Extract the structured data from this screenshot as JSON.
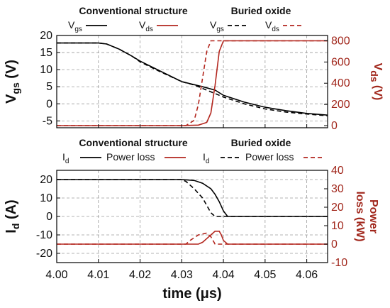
{
  "colors": {
    "black": "#000000",
    "red": "#b3261e",
    "grid": "#9a9a9a"
  },
  "chart_data": [
    {
      "type": "line",
      "legend_groups": [
        {
          "name": "Conventional structure",
          "style": "solid",
          "entries": [
            {
              "label": "V",
              "sub": "gs",
              "color": "#000000"
            },
            {
              "label": "V",
              "sub": "ds",
              "color": "#b3261e"
            }
          ]
        },
        {
          "name": "Buried oxide",
          "style": "dashed",
          "entries": [
            {
              "label": "V",
              "sub": "gs",
              "color": "#000000"
            },
            {
              "label": "V",
              "sub": "ds",
              "color": "#b3261e"
            }
          ]
        }
      ],
      "xlim": [
        4.0,
        4.065
      ],
      "ylim_left": [
        -7,
        20
      ],
      "ylim_right": [
        -20,
        850
      ],
      "yticks_left": [
        "20",
        "15",
        "10",
        "5",
        "0",
        "-5"
      ],
      "yticks_right": [
        "800",
        "600",
        "400",
        "200",
        "0"
      ],
      "ylabel_left": {
        "main": "V",
        "sub": "gs",
        "unit": " (V)"
      },
      "ylabel_right": {
        "main": "V",
        "sub": "ds",
        "unit": " (V)"
      },
      "grid": true,
      "series": [
        {
          "name": "Conventional Vgs",
          "axis": "left",
          "color": "#000000",
          "dash": false,
          "x": [
            4.0,
            4.005,
            4.01,
            4.012,
            4.015,
            4.018,
            4.02,
            4.025,
            4.03,
            4.035,
            4.038,
            4.04,
            4.045,
            4.05,
            4.055,
            4.06,
            4.065
          ],
          "y": [
            17.8,
            17.8,
            17.8,
            17.5,
            16.0,
            14.0,
            12.5,
            9.5,
            6.5,
            5.0,
            4.0,
            2.5,
            0.5,
            -1.0,
            -2.0,
            -2.8,
            -3.3
          ]
        },
        {
          "name": "Conventional Vds",
          "axis": "right",
          "color": "#b3261e",
          "dash": false,
          "x": [
            4.0,
            4.03,
            4.034,
            4.036,
            4.037,
            4.038,
            4.039,
            4.04,
            4.045,
            4.065
          ],
          "y": [
            0,
            0,
            5,
            30,
            120,
            380,
            700,
            800,
            800,
            800
          ]
        },
        {
          "name": "Buried oxide Vgs",
          "axis": "left",
          "color": "#000000",
          "dash": true,
          "x": [
            4.0,
            4.005,
            4.01,
            4.012,
            4.015,
            4.018,
            4.02,
            4.025,
            4.03,
            4.033,
            4.035,
            4.04,
            4.045,
            4.05,
            4.055,
            4.06,
            4.065
          ],
          "y": [
            17.8,
            17.8,
            17.8,
            17.5,
            16.0,
            14.0,
            12.3,
            9.3,
            6.5,
            5.5,
            4.5,
            2.0,
            0.0,
            -1.5,
            -2.4,
            -3.0,
            -3.5
          ]
        },
        {
          "name": "Buried oxide Vds",
          "axis": "right",
          "color": "#b3261e",
          "dash": true,
          "x": [
            4.0,
            4.031,
            4.033,
            4.034,
            4.035,
            4.036,
            4.037,
            4.065
          ],
          "y": [
            0,
            0,
            50,
            200,
            450,
            700,
            800,
            800
          ]
        }
      ]
    },
    {
      "type": "line",
      "legend_groups": [
        {
          "name": "Conventional structure",
          "style": "solid",
          "entries": [
            {
              "label": "I",
              "sub": "d",
              "color": "#000000"
            },
            {
              "label": "Power loss",
              "sub": "",
              "color": "#b3261e"
            }
          ]
        },
        {
          "name": "Buried oxide",
          "style": "dashed",
          "entries": [
            {
              "label": "I",
              "sub": "d",
              "color": "#000000"
            },
            {
              "label": "Power loss",
              "sub": "",
              "color": "#b3261e"
            }
          ]
        }
      ],
      "xlim": [
        4.0,
        4.065
      ],
      "ylim_left": [
        -25,
        25
      ],
      "ylim_right": [
        -10,
        40
      ],
      "xticks": [
        "4.00",
        "4.01",
        "4.02",
        "4.03",
        "4.04",
        "4.05",
        "4.06"
      ],
      "yticks_left": [
        "20",
        "10",
        "0",
        "-10",
        "-20"
      ],
      "yticks_right": [
        "40",
        "30",
        "20",
        "10",
        "0",
        "-10"
      ],
      "xlabel": "time (μs)",
      "ylabel_left": {
        "main": "I",
        "sub": "d",
        "unit": " (A)"
      },
      "ylabel_right": {
        "line1": "Power",
        "line2": "loss (kW)"
      },
      "grid": true,
      "series": [
        {
          "name": "Conventional Id",
          "axis": "left",
          "color": "#000000",
          "dash": false,
          "x": [
            4.0,
            4.03,
            4.033,
            4.035,
            4.037,
            4.038,
            4.039,
            4.04,
            4.041,
            4.065
          ],
          "y": [
            20.0,
            20.0,
            19.5,
            18.0,
            15.0,
            12.0,
            8.0,
            3.0,
            0.0,
            0.0
          ]
        },
        {
          "name": "Conventional power loss",
          "axis": "right",
          "color": "#b3261e",
          "dash": false,
          "x": [
            4.0,
            4.034,
            4.035,
            4.036,
            4.037,
            4.038,
            4.039,
            4.0395,
            4.04,
            4.041,
            4.065
          ],
          "y": [
            0,
            0,
            1,
            3,
            5,
            7,
            7,
            5,
            2,
            0,
            0
          ]
        },
        {
          "name": "Buried oxide Id",
          "axis": "left",
          "color": "#000000",
          "dash": true,
          "x": [
            4.0,
            4.03,
            4.031,
            4.033,
            4.035,
            4.036,
            4.037,
            4.038,
            4.065
          ],
          "y": [
            20.0,
            20.0,
            19.0,
            15.0,
            10.0,
            6.0,
            2.0,
            0.0,
            0.0
          ]
        },
        {
          "name": "Buried oxide power loss",
          "axis": "right",
          "color": "#b3261e",
          "dash": true,
          "x": [
            4.0,
            4.031,
            4.032,
            4.034,
            4.036,
            4.037,
            4.038,
            4.065
          ],
          "y": [
            0,
            0,
            2,
            5,
            6,
            4,
            0,
            0
          ]
        }
      ]
    }
  ]
}
